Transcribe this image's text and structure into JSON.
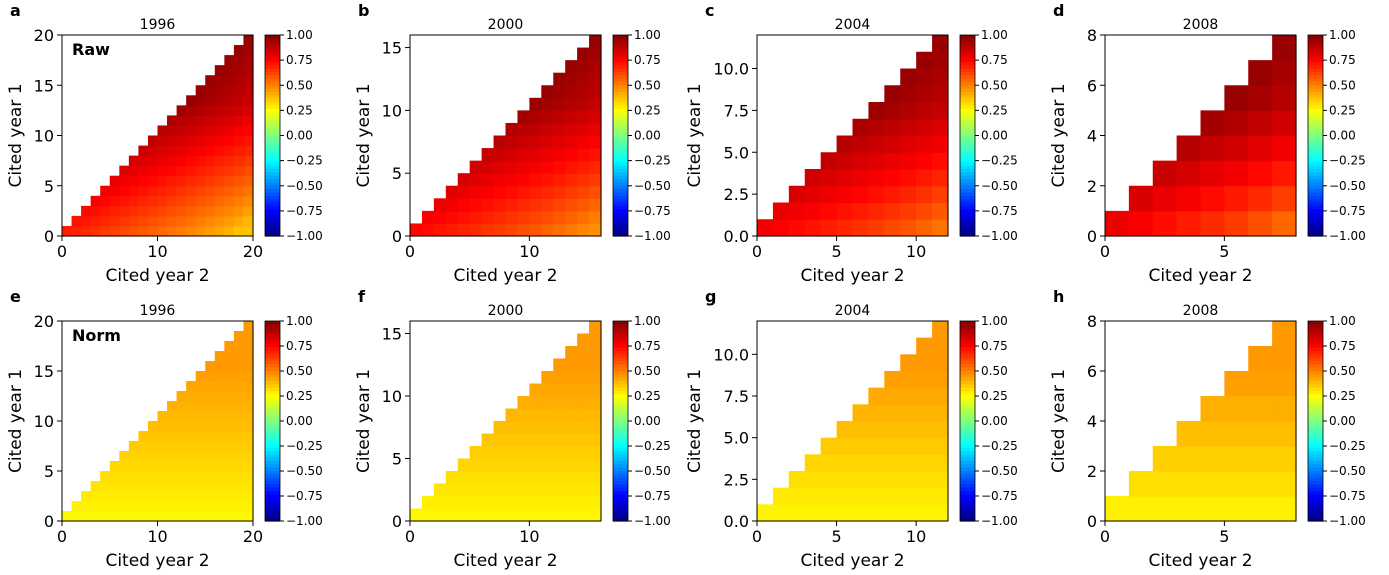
{
  "figure": {
    "row_tags": [
      "Raw",
      "Norm"
    ],
    "colorbar_ticks": [
      "1.00",
      "0.75",
      "0.50",
      "0.25",
      "0.00",
      "−0.25",
      "−0.50",
      "−0.75",
      "−1.00"
    ],
    "colormap": "jet",
    "colorbar_range": [
      -1,
      1
    ]
  },
  "chart_data": [
    {
      "panel": "a",
      "type": "heatmap",
      "title": "1996",
      "row": "Raw",
      "n": 20,
      "xlabel": "Cited year 2",
      "ylabel": "Cited year 1",
      "xlim": [
        0,
        20
      ],
      "ylim": [
        0,
        20
      ],
      "xticks": [
        "0",
        "10",
        "20"
      ],
      "yticks": [
        "0",
        "5",
        "10",
        "15",
        "20"
      ],
      "value_range_approx": [
        0.35,
        0.95
      ]
    },
    {
      "panel": "b",
      "type": "heatmap",
      "title": "2000",
      "row": "Raw",
      "n": 16,
      "xlabel": "Cited year 2",
      "ylabel": "Cited year 1",
      "xlim": [
        0,
        16
      ],
      "ylim": [
        0,
        16
      ],
      "xticks": [
        "0",
        "10"
      ],
      "yticks": [
        "0",
        "5",
        "10",
        "15"
      ],
      "value_range_approx": [
        0.45,
        0.95
      ]
    },
    {
      "panel": "c",
      "type": "heatmap",
      "title": "2004",
      "row": "Raw",
      "n": 12,
      "xlabel": "Cited year 2",
      "ylabel": "Cited year 1",
      "xlim": [
        0,
        12
      ],
      "ylim": [
        0,
        12
      ],
      "xticks": [
        "0",
        "5",
        "10"
      ],
      "yticks": [
        "0.0",
        "2.5",
        "5.0",
        "7.5",
        "10.0"
      ],
      "value_range_approx": [
        0.5,
        0.95
      ]
    },
    {
      "panel": "d",
      "type": "heatmap",
      "title": "2008",
      "row": "Raw",
      "n": 8,
      "xlabel": "Cited year 2",
      "ylabel": "Cited year 1",
      "xlim": [
        0,
        8
      ],
      "ylim": [
        0,
        8
      ],
      "xticks": [
        "0",
        "5"
      ],
      "yticks": [
        "0",
        "2",
        "4",
        "6",
        "8"
      ],
      "value_range_approx": [
        0.5,
        0.95
      ]
    },
    {
      "panel": "e",
      "type": "heatmap",
      "title": "1996",
      "row": "Norm",
      "n": 20,
      "xlabel": "Cited year 2",
      "ylabel": "Cited year 1",
      "xlim": [
        0,
        20
      ],
      "ylim": [
        0,
        20
      ],
      "xticks": [
        "0",
        "10",
        "20"
      ],
      "yticks": [
        "0",
        "5",
        "10",
        "15",
        "20"
      ],
      "value_range_approx": [
        0.25,
        0.45
      ]
    },
    {
      "panel": "f",
      "type": "heatmap",
      "title": "2000",
      "row": "Norm",
      "n": 16,
      "xlabel": "Cited year 2",
      "ylabel": "Cited year 1",
      "xlim": [
        0,
        16
      ],
      "ylim": [
        0,
        16
      ],
      "xticks": [
        "0",
        "10"
      ],
      "yticks": [
        "0",
        "5",
        "10",
        "15"
      ],
      "value_range_approx": [
        0.25,
        0.45
      ]
    },
    {
      "panel": "g",
      "type": "heatmap",
      "title": "2004",
      "row": "Norm",
      "n": 12,
      "xlabel": "Cited year 2",
      "ylabel": "Cited year 1",
      "xlim": [
        0,
        12
      ],
      "ylim": [
        0,
        12
      ],
      "xticks": [
        "0",
        "5",
        "10"
      ],
      "yticks": [
        "0.0",
        "2.5",
        "5.0",
        "7.5",
        "10.0"
      ],
      "value_range_approx": [
        0.25,
        0.45
      ]
    },
    {
      "panel": "h",
      "type": "heatmap",
      "title": "2008",
      "row": "Norm",
      "n": 8,
      "xlabel": "Cited year 2",
      "ylabel": "Cited year 1",
      "xlim": [
        0,
        8
      ],
      "ylim": [
        0,
        8
      ],
      "xticks": [
        "0",
        "5"
      ],
      "yticks": [
        "0",
        "2",
        "4",
        "6",
        "8"
      ],
      "value_range_approx": [
        0.25,
        0.45
      ]
    }
  ]
}
